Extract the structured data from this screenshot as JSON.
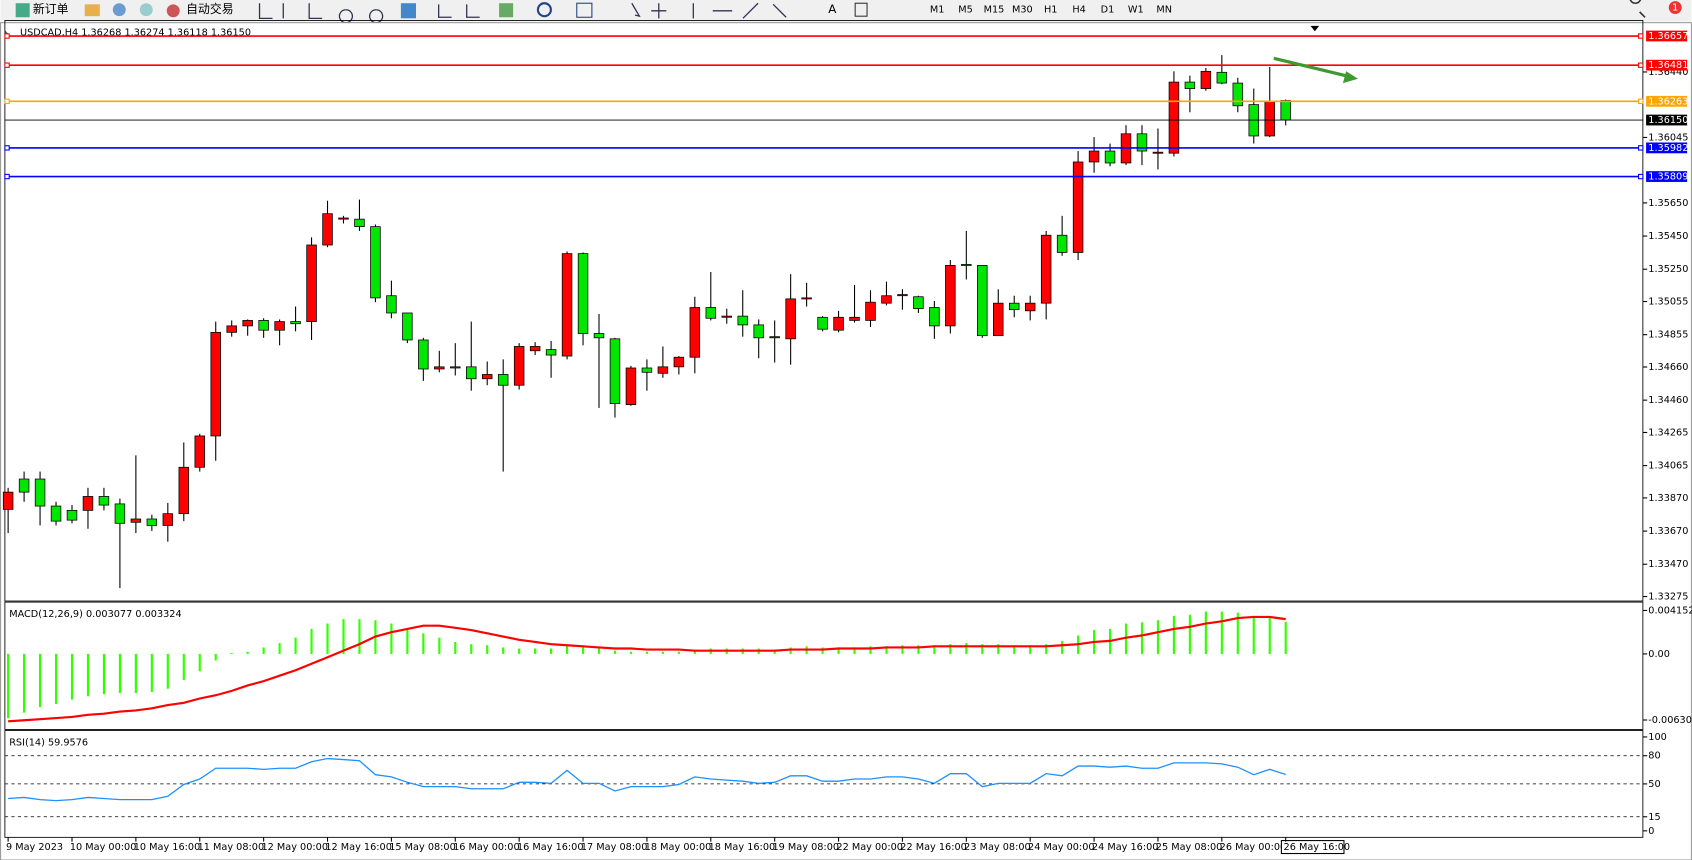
{
  "toolbar": {
    "new_order": "新订单",
    "auto_trading": "自动交易",
    "timeframes": [
      "M1",
      "M5",
      "M15",
      "M30",
      "H1",
      "H4",
      "D1",
      "W1",
      "MN"
    ],
    "notifications": 1
  },
  "chart_data": [
    {
      "type": "candlestick",
      "title": "USDCAD,H4  1.36268 1.36274 1.36118 1.36150",
      "categories": [
        "9 May 2023",
        null,
        null,
        null,
        "10 May 00:00",
        null,
        null,
        null,
        "10 May 16:00",
        null,
        null,
        null,
        "11 May 08:00",
        null,
        null,
        null,
        "12 May 00:00",
        null,
        null,
        null,
        "12 May 16:00",
        null,
        null,
        null,
        "15 May 08:00",
        null,
        null,
        null,
        "16 May 00:00",
        null,
        null,
        null,
        "16 May 16:00",
        null,
        null,
        null,
        "17 May 08:00",
        null,
        null,
        null,
        "18 May 00:00",
        null,
        null,
        null,
        "18 May 16:00",
        null,
        null,
        null,
        "19 May 08:00",
        null,
        null,
        null,
        "22 May 00:00",
        null,
        null,
        null,
        "22 May 16:00",
        null,
        null,
        null,
        "23 May 08:00",
        null,
        null,
        null,
        "24 May 00:00",
        null,
        null,
        null,
        "24 May 16:00",
        null,
        null,
        null,
        "25 May 08:00",
        null,
        null,
        null,
        "26 May 00:00",
        null,
        null,
        null,
        "26 May 16:00"
      ],
      "open": [
        1.33801,
        1.33984,
        1.33984,
        1.33821,
        1.33795,
        1.33795,
        1.33879,
        1.33834,
        1.33723,
        1.33743,
        1.33704,
        1.33775,
        1.34055,
        1.34244,
        1.34869,
        1.34908,
        1.34941,
        1.34882,
        1.34934,
        1.34934,
        1.35396,
        1.35552,
        1.35552,
        1.35507,
        1.3509,
        1.34986,
        1.34823,
        1.34648,
        1.34654,
        1.34661,
        1.34589,
        1.34615,
        1.3455,
        1.34758,
        1.34765,
        1.34726,
        1.35344,
        1.34862,
        1.3483,
        1.34433,
        1.34654,
        1.34622,
        1.34661,
        1.34719,
        1.35019,
        1.3496,
        1.34967,
        1.34914,
        1.34836,
        1.3483,
        1.35071,
        1.3496,
        1.34882,
        1.34941,
        1.34941,
        1.35045,
        1.3509,
        1.35084,
        1.35019,
        1.34908,
        1.35279,
        1.35273,
        1.34849,
        1.35045,
        1.34999,
        1.35045,
        1.35455,
        1.35351,
        1.35897,
        1.35963,
        1.35891,
        1.36067,
        1.3595,
        1.3595,
        1.36379,
        1.3634,
        1.36438,
        1.36373,
        1.36243,
        1.36054,
        1.36268
      ],
      "high": [
        1.33931,
        1.34029,
        1.34029,
        1.33847,
        1.33827,
        1.33931,
        1.33931,
        1.33866,
        1.34127,
        1.33769,
        1.3384,
        1.34205,
        1.34257,
        1.34934,
        1.34941,
        1.34947,
        1.34954,
        1.34947,
        1.35025,
        1.35442,
        1.35663,
        1.35572,
        1.3567,
        1.3552,
        1.35181,
        1.34986,
        1.34836,
        1.34758,
        1.34804,
        1.34934,
        1.34693,
        1.34706,
        1.34804,
        1.3481,
        1.34817,
        1.35357,
        1.35351,
        1.3498,
        1.34836,
        1.34667,
        1.34706,
        1.34784,
        1.34726,
        1.35084,
        1.35233,
        1.35012,
        1.35123,
        1.34947,
        1.34941,
        1.3522,
        1.35168,
        1.34967,
        1.34999,
        1.35155,
        1.35123,
        1.35175,
        1.35129,
        1.3509,
        1.35058,
        1.35305,
        1.35481,
        1.35273,
        1.35129,
        1.3509,
        1.3509,
        1.35481,
        1.35572,
        1.35963,
        1.36047,
        1.36008,
        1.36119,
        1.36119,
        1.36099,
        1.36444,
        1.36418,
        1.36464,
        1.36542,
        1.36405,
        1.3634,
        1.3647,
        1.36274
      ],
      "low": [
        1.33658,
        1.33847,
        1.33704,
        1.33704,
        1.33717,
        1.33684,
        1.33795,
        1.33326,
        1.33658,
        1.33671,
        1.33606,
        1.3373,
        1.34029,
        1.34094,
        1.34843,
        1.34849,
        1.34836,
        1.34791,
        1.34875,
        1.34823,
        1.35383,
        1.35526,
        1.35481,
        1.35051,
        1.34954,
        1.34804,
        1.34576,
        1.34628,
        1.34609,
        1.34517,
        1.3455,
        1.34029,
        1.34524,
        1.34732,
        1.34595,
        1.34706,
        1.34791,
        1.34413,
        1.34355,
        1.34426,
        1.34517,
        1.34595,
        1.34615,
        1.34622,
        1.34941,
        1.34921,
        1.34843,
        1.34713,
        1.34687,
        1.34674,
        1.35025,
        1.34875,
        1.34869,
        1.34928,
        1.34901,
        1.35032,
        1.35006,
        1.34986,
        1.3483,
        1.34862,
        1.35188,
        1.34836,
        1.34849,
        1.3496,
        1.34941,
        1.34947,
        1.35331,
        1.35305,
        1.35832,
        1.35871,
        1.35878,
        1.35878,
        1.35852,
        1.3593,
        1.36197,
        1.36327,
        1.36366,
        1.36197,
        1.36008,
        1.36047,
        1.36118
      ],
      "close": [
        1.33905,
        1.33905,
        1.33821,
        1.3373,
        1.33736,
        1.33879,
        1.33827,
        1.33717,
        1.33743,
        1.33704,
        1.33775,
        1.34055,
        1.34244,
        1.34869,
        1.34908,
        1.34941,
        1.34882,
        1.34934,
        1.34921,
        1.35396,
        1.35585,
        1.35559,
        1.35507,
        1.35077,
        1.34986,
        1.34823,
        1.34648,
        1.34661,
        1.34661,
        1.34589,
        1.34615,
        1.3455,
        1.34784,
        1.34784,
        1.34732,
        1.35344,
        1.34862,
        1.34836,
        1.34439,
        1.34654,
        1.34628,
        1.34661,
        1.34719,
        1.35019,
        1.34954,
        1.34967,
        1.34914,
        1.34836,
        1.34843,
        1.35071,
        1.35077,
        1.34888,
        1.3496,
        1.3496,
        1.35051,
        1.3509,
        1.35097,
        1.35012,
        1.34908,
        1.35273,
        1.35273,
        1.34849,
        1.35045,
        1.35006,
        1.35045,
        1.35455,
        1.35351,
        1.35897,
        1.35963,
        1.35891,
        1.36067,
        1.35963,
        1.35956,
        1.36379,
        1.3634,
        1.36444,
        1.36373,
        1.36236,
        1.36054,
        1.36262,
        1.3615
      ],
      "up_color": "#ff0000",
      "down_color": "#00e600",
      "ylim": [
        1.33248,
        1.36731
      ],
      "yticks": [
        {
          "value": 1.3644,
          "label": "1.36440"
        },
        {
          "value": 1.36045,
          "label": "1.36045"
        },
        {
          "value": 1.3565,
          "label": "1.35650"
        },
        {
          "value": 1.3545,
          "label": "1.35450"
        },
        {
          "value": 1.3525,
          "label": "1.35250"
        },
        {
          "value": 1.35055,
          "label": "1.35055"
        },
        {
          "value": 1.34855,
          "label": "1.34855"
        },
        {
          "value": 1.3466,
          "label": "1.34660"
        },
        {
          "value": 1.3446,
          "label": "1.34460"
        },
        {
          "value": 1.34265,
          "label": "1.34265"
        },
        {
          "value": 1.34065,
          "label": "1.34065"
        },
        {
          "value": 1.3387,
          "label": "1.33870"
        },
        {
          "value": 1.3367,
          "label": "1.33670"
        },
        {
          "value": 1.3347,
          "label": "1.33470"
        },
        {
          "value": 1.33275,
          "label": "1.33275"
        }
      ],
      "hlines": [
        {
          "value": 1.36657,
          "label": "1.36657",
          "color": "#ff0000"
        },
        {
          "value": 1.36481,
          "label": "1.36481",
          "color": "#ff0000"
        },
        {
          "value": 1.36263,
          "label": "1.36263",
          "color": "#ffa500"
        },
        {
          "value": 1.3615,
          "label": "1.36150",
          "color": "#000000"
        },
        {
          "value": 1.35982,
          "label": "1.35982",
          "color": "#0000ff"
        },
        {
          "value": 1.35809,
          "label": "1.35809",
          "color": "#0000ff"
        }
      ]
    },
    {
      "type": "macd",
      "title": "MACD(12,26,9) 0.003077 0.003324",
      "values": [
        -0.006124,
        -0.005605,
        -0.005086,
        -0.004775,
        -0.00436,
        -0.004048,
        -0.003841,
        -0.003737,
        -0.003737,
        -0.003633,
        -0.003322,
        -0.002491,
        -0.001661,
        -0.000623,
        0.000104,
        0.000208,
        0.000623,
        0.001038,
        0.001557,
        0.002387,
        0.002906,
        0.003322,
        0.003322,
        0.003218,
        0.002906,
        0.002387,
        0.001972,
        0.001557,
        0.001142,
        0.000934,
        0.00083,
        0.000623,
        0.000519,
        0.000519,
        0.000519,
        0.00083,
        0.00083,
        0.000623,
        0.000311,
        0.000208,
        0.000208,
        0.000208,
        0.000208,
        0.000311,
        0.000519,
        0.000519,
        0.000519,
        0.000519,
        0.000415,
        0.000623,
        0.000727,
        0.000623,
        0.000623,
        0.000623,
        0.000727,
        0.000727,
        0.00083,
        0.00083,
        0.00083,
        0.000934,
        0.001038,
        0.000934,
        0.000934,
        0.00083,
        0.00083,
        0.000934,
        0.001246,
        0.001765,
        0.002284,
        0.002387,
        0.002906,
        0.00301,
        0.003218,
        0.003633,
        0.003737,
        0.004048,
        0.004048,
        0.003944,
        0.003633,
        0.003529,
        0.003077
      ],
      "signal": [
        -0.006436,
        -0.006332,
        -0.006228,
        -0.006124,
        -0.00602,
        -0.005813,
        -0.005709,
        -0.005501,
        -0.005398,
        -0.00519,
        -0.004879,
        -0.004671,
        -0.004256,
        -0.003944,
        -0.003529,
        -0.00301,
        -0.002595,
        -0.002076,
        -0.001557,
        -0.000934,
        -0.000311,
        0.000311,
        0.000934,
        0.001661,
        0.002076,
        0.002387,
        0.002699,
        0.002699,
        0.002491,
        0.002284,
        0.001972,
        0.001661,
        0.001349,
        0.001142,
        0.000934,
        0.00083,
        0.000727,
        0.000623,
        0.000519,
        0.000519,
        0.000415,
        0.000415,
        0.000415,
        0.000311,
        0.000311,
        0.000311,
        0.000311,
        0.000311,
        0.000311,
        0.000415,
        0.000415,
        0.000415,
        0.000519,
        0.000519,
        0.000519,
        0.000623,
        0.000623,
        0.000623,
        0.000727,
        0.000727,
        0.000727,
        0.000727,
        0.000727,
        0.000727,
        0.000727,
        0.000727,
        0.00083,
        0.000934,
        0.001142,
        0.001246,
        0.001557,
        0.001765,
        0.002076,
        0.002387,
        0.002595,
        0.002906,
        0.003114,
        0.003425,
        0.003529,
        0.003529,
        0.003324
      ],
      "color": "#33ff00",
      "signal_color": "#ff0000",
      "ylim": [
        -0.00721,
        0.00464
      ],
      "yticks": [
        0.004152,
        {
          "value": 0,
          "label": "0.00"
        },
        -0.006309
      ]
    },
    {
      "type": "line",
      "title": "RSI(14) 59.9576",
      "values": [
        34.5,
        35.6,
        33.3,
        32.2,
        33.3,
        35.6,
        34.5,
        33.3,
        33.3,
        33.3,
        36.8,
        49.4,
        55.2,
        66.7,
        66.7,
        66.7,
        65.5,
        66.7,
        66.7,
        73.6,
        77.0,
        75.9,
        74.7,
        59.8,
        57.5,
        51.7,
        47.1,
        47.1,
        47.1,
        44.8,
        44.8,
        44.8,
        51.7,
        51.7,
        50.6,
        64.4,
        50.6,
        50.6,
        42.5,
        47.1,
        47.1,
        47.1,
        49.4,
        57.5,
        55.2,
        54.0,
        52.9,
        50.6,
        51.7,
        58.6,
        58.6,
        52.9,
        52.9,
        55.2,
        55.2,
        57.5,
        57.5,
        55.2,
        50.6,
        60.9,
        60.9,
        47.1,
        50.6,
        50.6,
        50.6,
        60.9,
        58.6,
        69.0,
        69.0,
        67.8,
        69.0,
        66.7,
        66.7,
        72.4,
        72.4,
        72.4,
        71.3,
        67.8,
        59.8,
        65.5,
        59.9576
      ],
      "color": "#1e90ff",
      "ylim": [
        -6.9,
        103.4
      ],
      "yticks": [
        0,
        15,
        50,
        80,
        100
      ]
    }
  ]
}
